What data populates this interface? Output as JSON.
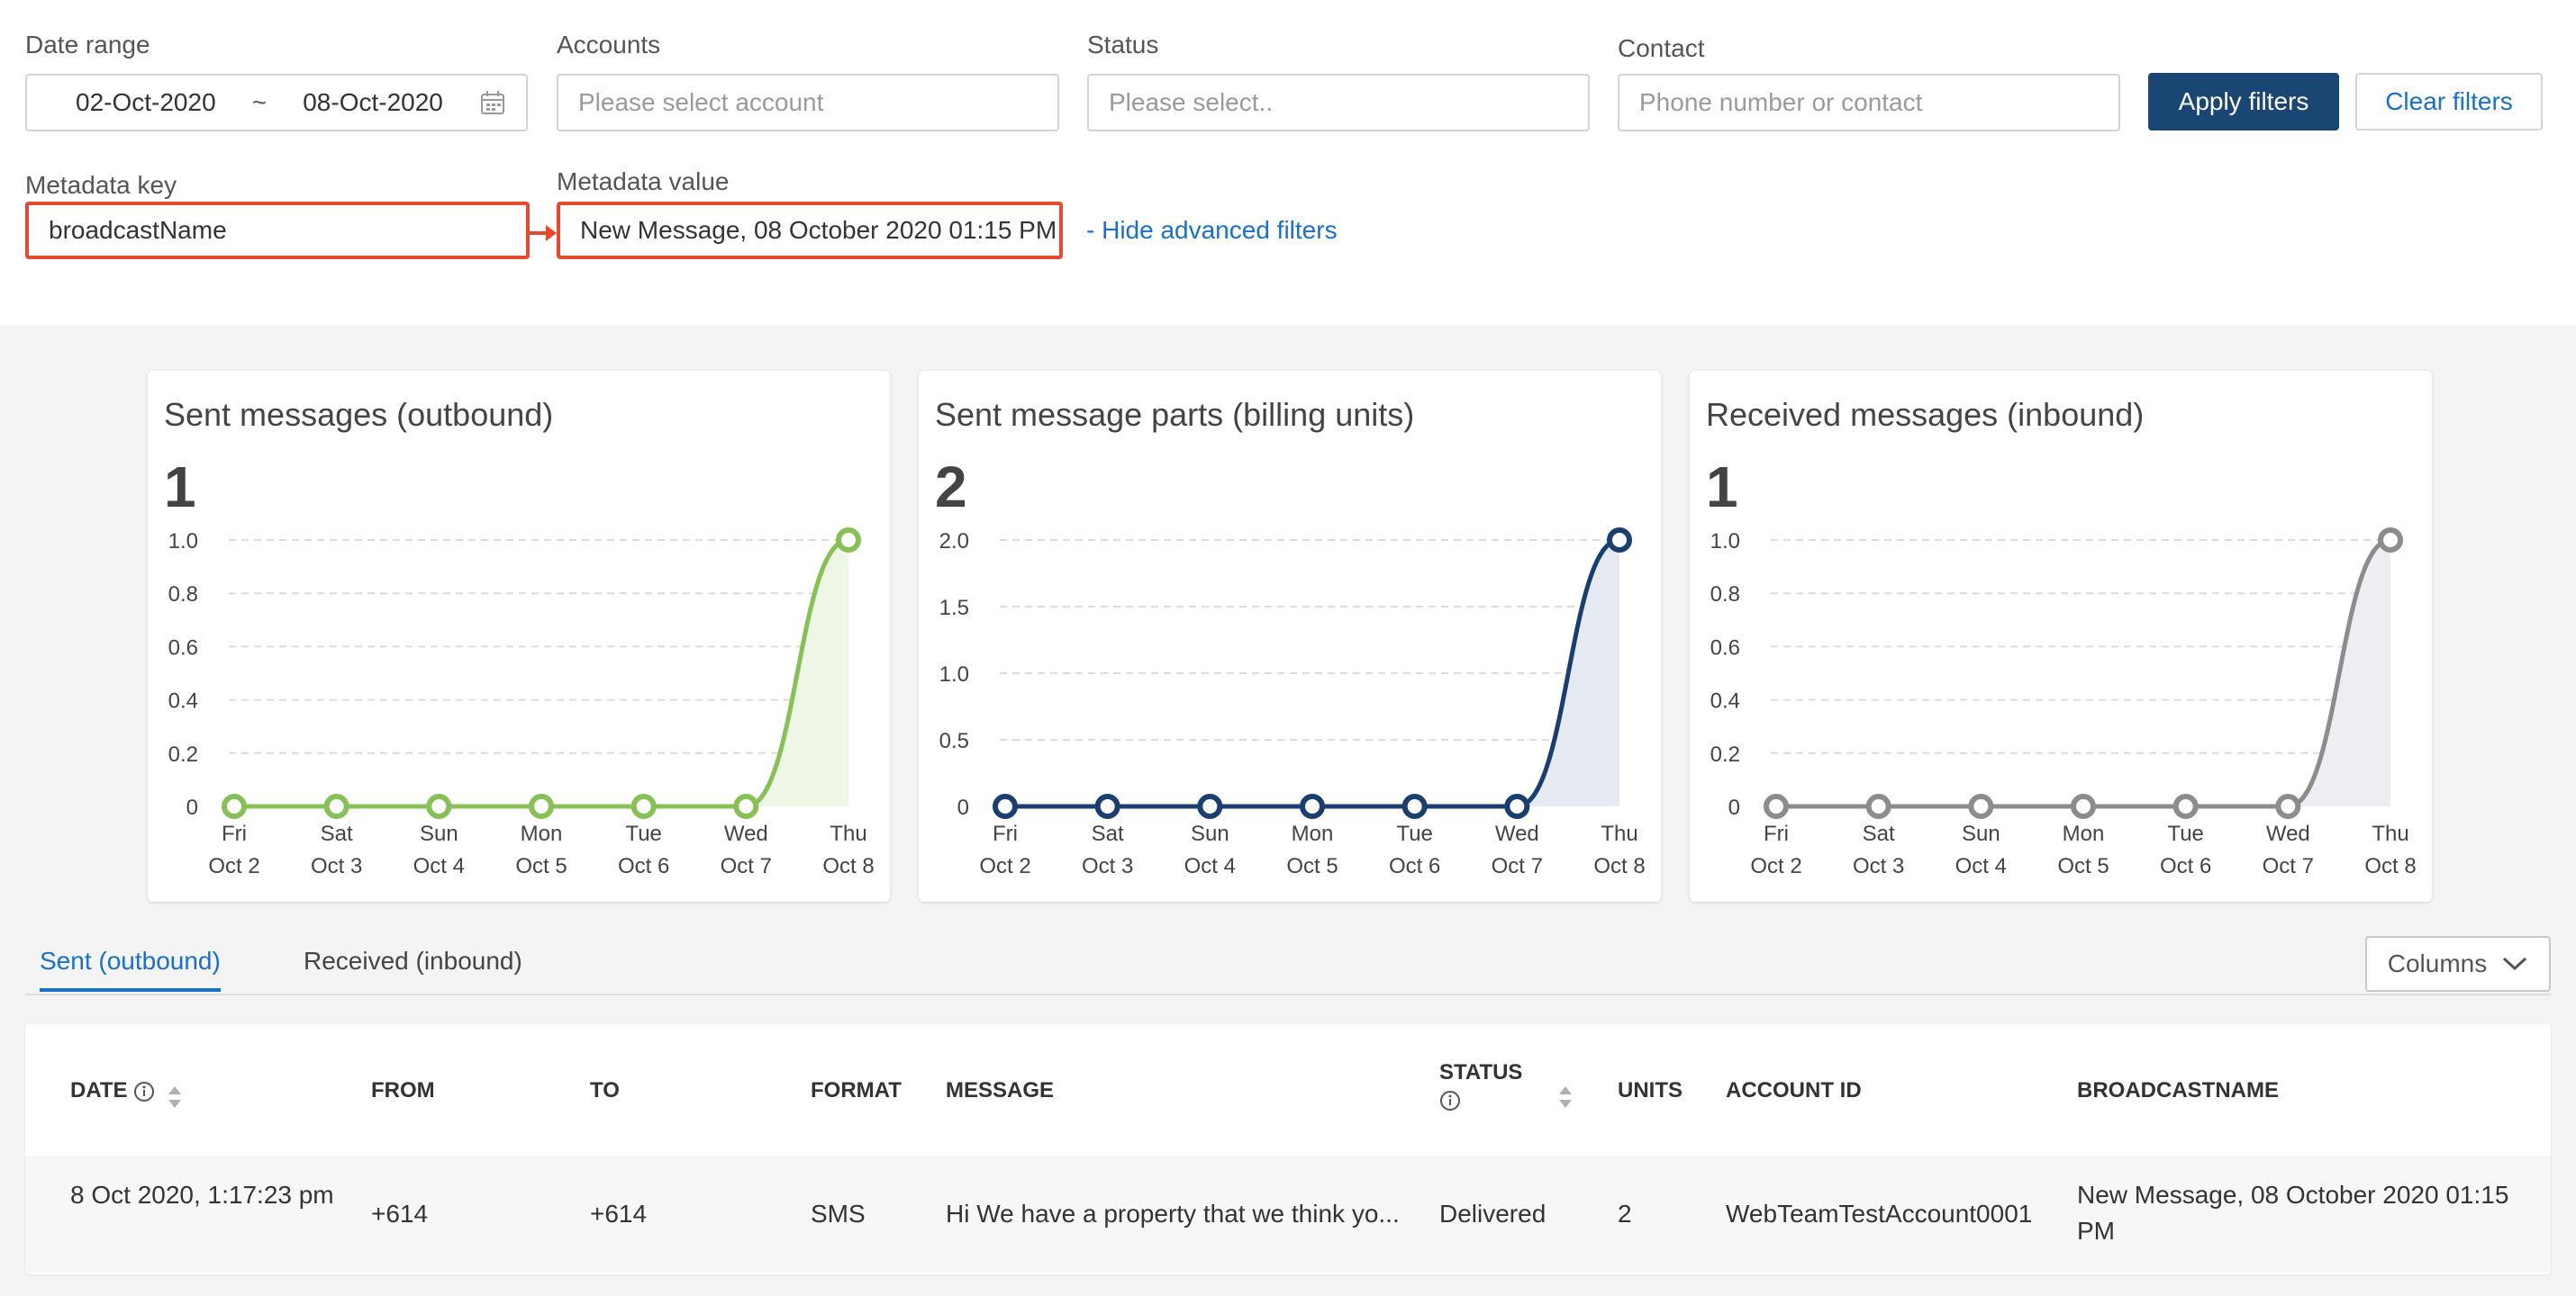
{
  "filters": {
    "date_range_label": "Date range",
    "date_from": "02-Oct-2020",
    "date_separator": "~",
    "date_to": "08-Oct-2020",
    "accounts_label": "Accounts",
    "accounts_placeholder": "Please select account",
    "status_label": "Status",
    "status_placeholder": "Please select..",
    "contact_label": "Contact",
    "contact_placeholder": "Phone number or contact",
    "apply_label": "Apply filters",
    "clear_label": "Clear filters",
    "metadata_key_label": "Metadata key",
    "metadata_key_value": "broadcastName",
    "metadata_value_label": "Metadata value",
    "metadata_value_value": "New Message, 08 October 2020 01:15 PM",
    "hide_advanced_label": "- Hide advanced filters",
    "highlight_color": "#e34a2f"
  },
  "cards": [
    {
      "title": "Sent messages (outbound)",
      "total": "1",
      "color": "#88c058",
      "fill": "#eef6e6",
      "yticks": [
        "1.0",
        "0.8",
        "0.6",
        "0.4",
        "0.2",
        "0"
      ]
    },
    {
      "title": "Sent message parts (billing units)",
      "total": "2",
      "color": "#1a3f6e",
      "fill": "#e6ebf3",
      "yticks": [
        "2.0",
        "1.5",
        "1.0",
        "0.5",
        "0"
      ]
    },
    {
      "title": "Received messages (inbound)",
      "total": "1",
      "color": "#8c8c8c",
      "fill": "#eceef2",
      "yticks": [
        "1.0",
        "0.8",
        "0.6",
        "0.4",
        "0.2",
        "0"
      ]
    }
  ],
  "chart_data": [
    {
      "type": "area",
      "title": "Sent messages (outbound)",
      "categories": [
        "Fri|Oct 2",
        "Sat|Oct 3",
        "Sun|Oct 4",
        "Mon|Oct 5",
        "Tue|Oct 6",
        "Wed|Oct 7",
        "Thu|Oct 8"
      ],
      "values": [
        0,
        0,
        0,
        0,
        0,
        0,
        1
      ],
      "ylim": [
        0,
        1
      ],
      "grid": true
    },
    {
      "type": "area",
      "title": "Sent message parts (billing units)",
      "categories": [
        "Fri|Oct 2",
        "Sat|Oct 3",
        "Sun|Oct 4",
        "Mon|Oct 5",
        "Tue|Oct 6",
        "Wed|Oct 7",
        "Thu|Oct 8"
      ],
      "values": [
        0,
        0,
        0,
        0,
        0,
        0,
        2
      ],
      "ylim": [
        0,
        2
      ],
      "grid": true
    },
    {
      "type": "area",
      "title": "Received messages (inbound)",
      "categories": [
        "Fri|Oct 2",
        "Sat|Oct 3",
        "Sun|Oct 4",
        "Mon|Oct 5",
        "Tue|Oct 6",
        "Wed|Oct 7",
        "Thu|Oct 8"
      ],
      "values": [
        0,
        0,
        0,
        0,
        0,
        0,
        1
      ],
      "ylim": [
        0,
        1
      ],
      "grid": true
    }
  ],
  "tabs": {
    "sent_label": "Sent (outbound)",
    "received_label": "Received (inbound)",
    "columns_label": "Columns"
  },
  "table": {
    "headers": {
      "date": "DATE",
      "from": "FROM",
      "to": "TO",
      "format": "FORMAT",
      "message": "MESSAGE",
      "status": "STATUS",
      "units": "UNITS",
      "account_id": "ACCOUNT ID",
      "broadcastname": "BROADCASTNAME"
    },
    "rows": [
      {
        "date": "8 Oct 2020, 1:17:23 pm",
        "from": "+614",
        "to": "+614",
        "format": "SMS",
        "message": "Hi We have a property that we think yo...",
        "status": "Delivered",
        "units": "2",
        "account_id": "WebTeamTestAccount0001",
        "broadcastname": "New Message, 08 October 2020 01:15 PM"
      }
    ]
  }
}
